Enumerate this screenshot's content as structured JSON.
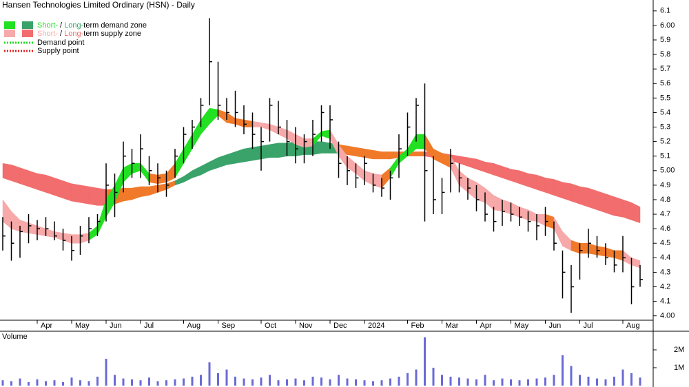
{
  "chart_data": {
    "type": "ohlc",
    "title": "Hansen Technologies Limited Ordinary (HSN) - Daily",
    "legend": {
      "short": "Short-",
      "sep": " / ",
      "long": "Long-",
      "demand": "term demand zone",
      "supply": "term supply zone",
      "demand_point": "Demand point",
      "supply_point": "Supply point",
      "demand_colors": [
        "#22e022",
        "#3aa36a"
      ],
      "supply_colors": [
        "#f7a8a8",
        "#f26d6d"
      ],
      "demand_point_color": "#22e022",
      "supply_point_color": "#e02020"
    },
    "categories": [
      null,
      null,
      null,
      null,
      "Apr",
      null,
      null,
      null,
      "May",
      null,
      null,
      null,
      "Jun",
      null,
      null,
      null,
      "Jul",
      null,
      null,
      null,
      null,
      "Aug",
      null,
      null,
      null,
      "Sep",
      null,
      null,
      null,
      null,
      "Oct",
      null,
      null,
      null,
      "Nov",
      null,
      null,
      null,
      "Dec",
      null,
      null,
      null,
      "2024",
      null,
      null,
      null,
      null,
      "Feb",
      null,
      null,
      null,
      "Mar",
      null,
      null,
      null,
      "Apr",
      null,
      null,
      null,
      "May",
      null,
      null,
      null,
      "Jun",
      null,
      null,
      null,
      "Jul",
      null,
      null,
      null,
      null,
      "Aug",
      null,
      null
    ],
    "high": [
      4.68,
      4.65,
      4.62,
      4.7,
      4.66,
      4.68,
      4.65,
      4.6,
      4.55,
      4.62,
      4.68,
      4.7,
      5.05,
      4.98,
      5.2,
      5.15,
      5.25,
      5.1,
      5.05,
      5.0,
      5.15,
      5.3,
      5.35,
      5.5,
      6.05,
      5.75,
      5.5,
      5.55,
      5.45,
      5.4,
      5.3,
      5.5,
      5.48,
      5.35,
      5.3,
      5.25,
      5.35,
      5.45,
      5.45,
      5.2,
      5.1,
      5.05,
      5.1,
      4.98,
      4.95,
      5.0,
      5.25,
      5.4,
      5.5,
      5.6,
      5.1,
      4.95,
      5.15,
      5.05,
      4.95,
      4.9,
      4.85,
      4.75,
      4.8,
      4.78,
      4.75,
      4.72,
      4.7,
      4.75,
      4.65,
      4.45,
      4.35,
      4.5,
      4.6,
      4.55,
      4.5,
      4.45,
      4.55,
      4.4,
      4.35
    ],
    "low": [
      4.45,
      4.38,
      4.4,
      4.5,
      4.52,
      4.55,
      4.52,
      4.45,
      4.38,
      4.42,
      4.5,
      4.55,
      4.65,
      4.68,
      4.85,
      4.95,
      4.95,
      4.9,
      4.85,
      4.82,
      4.95,
      5.05,
      5.15,
      5.3,
      5.45,
      5.35,
      5.35,
      5.3,
      5.25,
      5.15,
      5.0,
      5.2,
      5.25,
      5.1,
      5.05,
      5.05,
      5.1,
      5.2,
      5.15,
      4.95,
      4.9,
      4.88,
      4.9,
      4.85,
      4.82,
      4.8,
      4.95,
      5.1,
      5.2,
      4.65,
      4.7,
      4.7,
      4.85,
      4.85,
      4.8,
      4.72,
      4.65,
      4.58,
      4.62,
      4.65,
      4.62,
      4.58,
      4.52,
      4.55,
      4.45,
      4.12,
      4.02,
      4.25,
      4.4,
      4.4,
      4.35,
      4.3,
      4.3,
      4.08,
      4.2
    ],
    "close": [
      4.55,
      4.5,
      4.58,
      4.62,
      4.6,
      4.6,
      4.55,
      4.52,
      4.45,
      4.55,
      4.6,
      4.65,
      4.9,
      4.85,
      5.1,
      5.05,
      5.15,
      5.0,
      4.95,
      4.9,
      5.1,
      5.25,
      5.3,
      5.45,
      5.75,
      5.45,
      5.4,
      5.4,
      5.32,
      5.25,
      5.2,
      5.45,
      5.3,
      5.2,
      5.15,
      5.2,
      5.25,
      5.4,
      5.35,
      5.05,
      5.0,
      4.95,
      5.05,
      4.9,
      4.88,
      4.95,
      5.15,
      5.3,
      5.45,
      5.0,
      4.8,
      4.85,
      5.05,
      4.95,
      4.88,
      4.8,
      4.7,
      4.65,
      4.72,
      4.7,
      4.68,
      4.65,
      4.62,
      4.65,
      4.5,
      4.3,
      4.2,
      4.45,
      4.5,
      4.45,
      4.4,
      4.35,
      4.4,
      4.2,
      4.25
    ],
    "bar_color": "#000000",
    "long_term_zone": {
      "upper": [
        5.05,
        5.04,
        5.02,
        5.0,
        4.98,
        4.97,
        4.95,
        4.93,
        4.91,
        4.9,
        4.89,
        4.88,
        4.87,
        4.87,
        4.88,
        4.88,
        4.89,
        4.89,
        4.9,
        4.91,
        4.93,
        4.96,
        5.0,
        5.03,
        5.06,
        5.09,
        5.11,
        5.13,
        5.15,
        5.16,
        5.17,
        5.18,
        5.19,
        5.19,
        5.2,
        5.2,
        5.2,
        5.2,
        5.19,
        5.18,
        5.17,
        5.16,
        5.15,
        5.14,
        5.13,
        5.13,
        5.13,
        5.13,
        5.13,
        5.13,
        5.12,
        5.12,
        5.11,
        5.1,
        5.09,
        5.08,
        5.06,
        5.05,
        5.03,
        5.01,
        5.0,
        4.98,
        4.97,
        4.95,
        4.94,
        4.92,
        4.91,
        4.89,
        4.88,
        4.86,
        4.84,
        4.82,
        4.8,
        4.78,
        4.75
      ],
      "lower": [
        4.95,
        4.93,
        4.91,
        4.89,
        4.87,
        4.85,
        4.83,
        4.81,
        4.79,
        4.78,
        4.77,
        4.76,
        4.76,
        4.77,
        4.79,
        4.8,
        4.82,
        4.83,
        4.85,
        4.87,
        4.9,
        4.92,
        4.95,
        4.97,
        5.0,
        5.02,
        5.04,
        5.05,
        5.06,
        5.07,
        5.08,
        5.09,
        5.09,
        5.1,
        5.1,
        5.11,
        5.11,
        5.12,
        5.12,
        5.12,
        5.11,
        5.1,
        5.09,
        5.08,
        5.08,
        5.08,
        5.09,
        5.1,
        5.1,
        5.1,
        5.09,
        5.08,
        5.07,
        5.05,
        5.03,
        5.01,
        4.99,
        4.97,
        4.95,
        4.93,
        4.91,
        4.89,
        4.87,
        4.85,
        4.83,
        4.81,
        4.79,
        4.77,
        4.75,
        4.73,
        4.71,
        4.69,
        4.68,
        4.66,
        4.64
      ],
      "colors": [
        "#f26d6d",
        "#f26d6d",
        "#f26d6d",
        "#f26d6d",
        "#f26d6d",
        "#f26d6d",
        "#f26d6d",
        "#f26d6d",
        "#f26d6d",
        "#f26d6d",
        "#f26d6d",
        "#f26d6d",
        "#f07a2a",
        "#f07a2a",
        "#f07a2a",
        "#f07a2a",
        "#f07a2a",
        "#f07a2a",
        "#f07a2a",
        "#f07a2a",
        "#3aa36a",
        "#3aa36a",
        "#3aa36a",
        "#3aa36a",
        "#3aa36a",
        "#3aa36a",
        "#3aa36a",
        "#3aa36a",
        "#3aa36a",
        "#3aa36a",
        "#3aa36a",
        "#3aa36a",
        "#3aa36a",
        "#3aa36a",
        "#3aa36a",
        "#3aa36a",
        "#3aa36a",
        "#3aa36a",
        "#3aa36a",
        "#f07a2a",
        "#f07a2a",
        "#f07a2a",
        "#f07a2a",
        "#f07a2a",
        "#f07a2a",
        "#f07a2a",
        "#f07a2a",
        "#f07a2a",
        "#f07a2a",
        "#f26d6d",
        "#f26d6d",
        "#f26d6d",
        "#f26d6d",
        "#f26d6d",
        "#f26d6d",
        "#f26d6d",
        "#f26d6d",
        "#f26d6d",
        "#f26d6d",
        "#f26d6d",
        "#f26d6d",
        "#f26d6d",
        "#f26d6d",
        "#f26d6d",
        "#f26d6d",
        "#f26d6d",
        "#f26d6d",
        "#f26d6d",
        "#f26d6d",
        "#f26d6d",
        "#f26d6d",
        "#f26d6d",
        "#f26d6d",
        "#f26d6d",
        "#f26d6d"
      ]
    },
    "short_term_zone": {
      "upper": [
        4.8,
        4.72,
        4.66,
        4.64,
        4.62,
        4.6,
        4.58,
        4.57,
        4.56,
        4.56,
        4.57,
        4.62,
        4.8,
        4.9,
        5.02,
        5.05,
        5.05,
        4.98,
        4.97,
        4.98,
        5.05,
        5.15,
        5.25,
        5.35,
        5.43,
        5.42,
        5.4,
        5.36,
        5.35,
        5.34,
        5.33,
        5.32,
        5.3,
        5.28,
        5.25,
        5.22,
        5.22,
        5.27,
        5.28,
        5.18,
        5.1,
        5.05,
        5.0,
        4.98,
        4.97,
        5.02,
        5.1,
        5.15,
        5.25,
        5.25,
        5.15,
        5.12,
        5.1,
        5.0,
        4.95,
        4.92,
        4.88,
        4.83,
        4.8,
        4.78,
        4.75,
        4.73,
        4.7,
        4.7,
        4.68,
        4.58,
        4.52,
        4.5,
        4.5,
        4.48,
        4.47,
        4.45,
        4.45,
        4.4,
        4.38
      ],
      "lower": [
        4.65,
        4.6,
        4.58,
        4.57,
        4.56,
        4.55,
        4.54,
        4.52,
        4.5,
        4.5,
        4.52,
        4.56,
        4.68,
        4.78,
        4.92,
        4.98,
        5.0,
        4.92,
        4.91,
        4.92,
        4.95,
        5.05,
        5.15,
        5.25,
        5.32,
        5.38,
        5.33,
        5.32,
        5.3,
        5.3,
        5.3,
        5.28,
        5.25,
        5.22,
        5.18,
        5.16,
        5.17,
        5.24,
        5.22,
        5.1,
        5.02,
        4.98,
        4.93,
        4.9,
        4.88,
        4.95,
        5.05,
        5.1,
        5.15,
        5.15,
        5.08,
        5.05,
        5.02,
        4.9,
        4.85,
        4.8,
        4.78,
        4.73,
        4.72,
        4.7,
        4.68,
        4.66,
        4.65,
        4.62,
        4.6,
        4.48,
        4.45,
        4.43,
        4.43,
        4.42,
        4.41,
        4.4,
        4.38,
        4.35,
        4.33
      ],
      "colors": [
        "#f7a8a8",
        "#f7a8a8",
        "#f7a8a8",
        "#f7a8a8",
        "#f7a8a8",
        "#f7a8a8",
        "#f7a8a8",
        "#f7a8a8",
        "#f7a8a8",
        "#f7a8a8",
        "#22e022",
        "#22e022",
        "#22e022",
        "#22e022",
        "#22e022",
        "#22e022",
        "#22e022",
        "#f07a2a",
        "#f07a2a",
        "#f07a2a",
        "#22e022",
        "#22e022",
        "#22e022",
        "#22e022",
        "#22e022",
        "#f07a2a",
        "#f07a2a",
        "#f07a2a",
        "#f07a2a",
        "#f7a8a8",
        "#f7a8a8",
        "#f7a8a8",
        "#f7a8a8",
        "#f7a8a8",
        "#f7a8a8",
        "#f7a8a8",
        "#22e022",
        "#22e022",
        "#f7a8a8",
        "#f7a8a8",
        "#f7a8a8",
        "#f7a8a8",
        "#f7a8a8",
        "#f7a8a8",
        "#f07a2a",
        "#22e022",
        "#22e022",
        "#22e022",
        "#22e022",
        "#f07a2a",
        "#f07a2a",
        "#f07a2a",
        "#f7a8a8",
        "#f7a8a8",
        "#f7a8a8",
        "#f7a8a8",
        "#f7a8a8",
        "#f7a8a8",
        "#f7a8a8",
        "#f7a8a8",
        "#f7a8a8",
        "#f7a8a8",
        "#f7a8a8",
        "#f07a2a",
        "#f7a8a8",
        "#f7a8a8",
        "#f07a2a",
        "#f07a2a",
        "#f07a2a",
        "#f07a2a",
        "#f07a2a",
        "#f07a2a",
        "#f7a8a8",
        "#f7a8a8",
        "#f7a8a8"
      ]
    },
    "ylim": [
      3.97,
      6.175
    ],
    "yticks": [
      {
        "value": 4,
        "label": "4.00"
      },
      4.1,
      4.2,
      4.3,
      4.4,
      4.5,
      4.6,
      4.7,
      4.8,
      4.9,
      {
        "value": 5,
        "label": "5.00"
      },
      5.1,
      5.2,
      5.3,
      5.4,
      5.5,
      5.6,
      5.7,
      5.8,
      5.9,
      {
        "value": 6,
        "label": "6.00"
      },
      6.1
    ],
    "volume": {
      "label": "Volume",
      "label_color": "#4b0082",
      "color": "#6a6ad8",
      "values": [
        300000,
        250000,
        400000,
        200000,
        350000,
        250000,
        300000,
        200000,
        450000,
        300000,
        250000,
        500000,
        1500000,
        600000,
        400000,
        350000,
        300000,
        450000,
        250000,
        300000,
        350000,
        400000,
        500000,
        600000,
        1300000,
        700000,
        900000,
        500000,
        400000,
        350000,
        450000,
        600000,
        300000,
        350000,
        400000,
        300000,
        500000,
        450000,
        350000,
        600000,
        400000,
        350000,
        300000,
        250000,
        300000,
        400000,
        500000,
        700000,
        900000,
        2700000,
        1000000,
        600000,
        500000,
        450000,
        400000,
        350000,
        600000,
        300000,
        400000,
        350000,
        300000,
        350000,
        400000,
        450000,
        600000,
        1700000,
        1100000,
        600000,
        500000,
        400000,
        350000,
        500000,
        900000,
        700000,
        450000
      ],
      "ylim": [
        0,
        3040000
      ],
      "yticks": [
        {
          "value": 1000000,
          "label": "1M"
        },
        {
          "value": 2000000,
          "label": "2M"
        }
      ]
    }
  }
}
